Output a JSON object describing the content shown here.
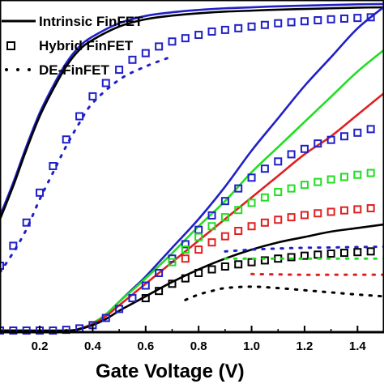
{
  "chart_data": {
    "type": "line",
    "xlabel": "Gate Voltage (V)",
    "ylabel": "",
    "title": "",
    "xlim": [
      0.05,
      1.5
    ],
    "ylim": [
      0,
      1
    ],
    "x_ticks": [
      "0.2",
      "0.4",
      "0.6",
      "0.8",
      "1.0",
      "1.2",
      "1.4"
    ],
    "x_tick_values": [
      0.2,
      0.4,
      0.6,
      0.8,
      1.0,
      1.2,
      1.4
    ],
    "legend": {
      "position": "top-left",
      "entries": [
        {
          "label": "Intrinsic FinFET",
          "marker": "solid-line"
        },
        {
          "label": "Hybrid FinFET",
          "marker": "open-square"
        },
        {
          "label": "DE-FinFET",
          "marker": "dotted-line"
        }
      ]
    },
    "colors": {
      "black": "#000000",
      "red": "#e02020",
      "green": "#22dd22",
      "blue": "#2020c8"
    },
    "series": [
      {
        "style": "solid",
        "color": "blue",
        "group": "log",
        "x": [
          0.05,
          0.1,
          0.15,
          0.2,
          0.25,
          0.3,
          0.35,
          0.4,
          0.5,
          0.6,
          0.7,
          0.8,
          0.9,
          1.0,
          1.1,
          1.2,
          1.3,
          1.4,
          1.5
        ],
        "y": [
          0.35,
          0.45,
          0.56,
          0.66,
          0.74,
          0.81,
          0.86,
          0.89,
          0.93,
          0.952,
          0.963,
          0.97,
          0.975,
          0.978,
          0.981,
          0.983,
          0.985,
          0.987,
          0.988
        ]
      },
      {
        "style": "solid",
        "color": "black",
        "group": "log",
        "x": [
          0.05,
          0.1,
          0.15,
          0.2,
          0.25,
          0.3,
          0.35,
          0.4,
          0.5,
          0.6,
          0.7,
          0.8,
          0.9,
          1.0,
          1.1,
          1.2,
          1.3,
          1.4,
          1.5
        ],
        "y": [
          0.34,
          0.44,
          0.55,
          0.65,
          0.73,
          0.8,
          0.85,
          0.88,
          0.92,
          0.942,
          0.953,
          0.96,
          0.965,
          0.968,
          0.971,
          0.973,
          0.975,
          0.977,
          0.978
        ]
      },
      {
        "style": "square",
        "color": "blue",
        "group": "log",
        "x": [
          0.05,
          0.1,
          0.15,
          0.2,
          0.25,
          0.3,
          0.35,
          0.4,
          0.45,
          0.5,
          0.55,
          0.6,
          0.65,
          0.7,
          0.75,
          0.8,
          0.85,
          0.9,
          0.95,
          1.0,
          1.05,
          1.1,
          1.15,
          1.2,
          1.25,
          1.3,
          1.35,
          1.4,
          1.45
        ],
        "y": [
          0.2,
          0.26,
          0.33,
          0.42,
          0.5,
          0.58,
          0.65,
          0.71,
          0.75,
          0.79,
          0.82,
          0.84,
          0.86,
          0.875,
          0.885,
          0.895,
          0.905,
          0.91,
          0.915,
          0.92,
          0.925,
          0.93,
          0.933,
          0.936,
          0.939,
          0.942,
          0.944,
          0.946,
          0.948
        ]
      },
      {
        "style": "dotted",
        "color": "blue",
        "group": "log",
        "x": [
          0.05,
          0.1,
          0.15,
          0.2,
          0.25,
          0.3,
          0.35,
          0.4,
          0.5,
          0.6,
          0.7
        ],
        "y": [
          0.18,
          0.24,
          0.31,
          0.4,
          0.48,
          0.56,
          0.63,
          0.69,
          0.76,
          0.8,
          0.83
        ]
      },
      {
        "style": "solid",
        "color": "blue",
        "group": "linear",
        "x": [
          0.05,
          0.3,
          0.35,
          0.4,
          0.45,
          0.5,
          0.55,
          0.6,
          0.7,
          0.8,
          0.9,
          1.0,
          1.1,
          1.2,
          1.3,
          1.4,
          1.5
        ],
        "y": [
          0.0,
          0.0,
          0.005,
          0.02,
          0.045,
          0.08,
          0.115,
          0.15,
          0.23,
          0.31,
          0.4,
          0.5,
          0.59,
          0.68,
          0.76,
          0.84,
          0.9
        ]
      },
      {
        "style": "solid",
        "color": "green",
        "group": "linear",
        "x": [
          0.05,
          0.3,
          0.35,
          0.4,
          0.45,
          0.5,
          0.55,
          0.6,
          0.7,
          0.8,
          0.9,
          1.0,
          1.1,
          1.2,
          1.3,
          1.4,
          1.5
        ],
        "y": [
          0.0,
          0.0,
          0.005,
          0.02,
          0.045,
          0.08,
          0.112,
          0.145,
          0.215,
          0.29,
          0.36,
          0.44,
          0.51,
          0.58,
          0.65,
          0.72,
          0.78
        ]
      },
      {
        "style": "solid",
        "color": "red",
        "group": "linear",
        "x": [
          0.05,
          0.3,
          0.35,
          0.4,
          0.45,
          0.5,
          0.55,
          0.6,
          0.7,
          0.8,
          0.9,
          1.0,
          1.1,
          1.2,
          1.3,
          1.4,
          1.5
        ],
        "y": [
          0.0,
          0.0,
          0.005,
          0.018,
          0.04,
          0.07,
          0.1,
          0.13,
          0.19,
          0.25,
          0.31,
          0.37,
          0.43,
          0.49,
          0.54,
          0.6,
          0.66
        ]
      },
      {
        "style": "solid",
        "color": "black",
        "group": "linear",
        "x": [
          0.05,
          0.3,
          0.35,
          0.4,
          0.45,
          0.5,
          0.55,
          0.6,
          0.7,
          0.8,
          0.9,
          1.0,
          1.1,
          1.2,
          1.3,
          1.4,
          1.5
        ],
        "y": [
          0.0,
          0.0,
          0.004,
          0.015,
          0.032,
          0.055,
          0.075,
          0.095,
          0.135,
          0.17,
          0.2,
          0.225,
          0.245,
          0.26,
          0.275,
          0.285,
          0.295
        ]
      },
      {
        "style": "square",
        "color": "blue",
        "group": "linear",
        "x": [
          0.05,
          0.1,
          0.15,
          0.2,
          0.25,
          0.3,
          0.35,
          0.4,
          0.45,
          0.5,
          0.55,
          0.6,
          0.65,
          0.7,
          0.75,
          0.8,
          0.85,
          0.9,
          0.95,
          1.0,
          1.05,
          1.1,
          1.15,
          1.2,
          1.25,
          1.3,
          1.35,
          1.4,
          1.45
        ],
        "y": [
          0.0,
          0.0,
          0.0,
          0.0,
          0.0,
          0.002,
          0.006,
          0.015,
          0.035,
          0.06,
          0.09,
          0.125,
          0.16,
          0.2,
          0.24,
          0.28,
          0.32,
          0.36,
          0.395,
          0.425,
          0.45,
          0.47,
          0.49,
          0.505,
          0.52,
          0.53,
          0.54,
          0.55,
          0.56
        ]
      },
      {
        "style": "square",
        "color": "green",
        "group": "linear",
        "x": [
          0.7,
          0.75,
          0.8,
          0.85,
          0.9,
          0.95,
          1.0,
          1.05,
          1.1,
          1.15,
          1.2,
          1.25,
          1.3,
          1.35,
          1.4,
          1.45
        ],
        "y": [
          0.19,
          0.225,
          0.26,
          0.29,
          0.315,
          0.335,
          0.355,
          0.37,
          0.385,
          0.395,
          0.405,
          0.413,
          0.42,
          0.427,
          0.433,
          0.438
        ]
      },
      {
        "style": "square",
        "color": "red",
        "group": "linear",
        "x": [
          0.75,
          0.8,
          0.85,
          0.9,
          0.95,
          1.0,
          1.05,
          1.1,
          1.15,
          1.2,
          1.25,
          1.3,
          1.35,
          1.4,
          1.45
        ],
        "y": [
          0.2,
          0.225,
          0.245,
          0.262,
          0.277,
          0.29,
          0.3,
          0.308,
          0.315,
          0.321,
          0.326,
          0.33,
          0.334,
          0.337,
          0.34
        ]
      },
      {
        "style": "square",
        "color": "black",
        "group": "linear",
        "x": [
          0.6,
          0.65,
          0.7,
          0.75,
          0.8,
          0.85,
          0.9,
          0.95,
          1.0,
          1.05,
          1.1,
          1.15,
          1.2,
          1.25,
          1.3,
          1.35,
          1.4,
          1.45
        ],
        "y": [
          0.09,
          0.11,
          0.13,
          0.145,
          0.16,
          0.17,
          0.178,
          0.184,
          0.19,
          0.195,
          0.2,
          0.204,
          0.208,
          0.211,
          0.214,
          0.216,
          0.218,
          0.22
        ]
      },
      {
        "style": "dotted",
        "color": "blue",
        "group": "linear",
        "x": [
          0.9,
          1.0,
          1.1,
          1.2,
          1.3,
          1.4,
          1.5
        ],
        "y": [
          0.22,
          0.225,
          0.228,
          0.23,
          0.231,
          0.232,
          0.233
        ]
      },
      {
        "style": "dotted",
        "color": "green",
        "group": "linear",
        "x": [
          0.9,
          1.0,
          1.1,
          1.2,
          1.3,
          1.4,
          1.5
        ],
        "y": [
          0.2,
          0.2,
          0.2,
          0.2,
          0.2,
          0.2,
          0.2
        ]
      },
      {
        "style": "dotted",
        "color": "red",
        "group": "linear",
        "x": [
          1.0,
          1.1,
          1.2,
          1.3,
          1.4,
          1.5
        ],
        "y": [
          0.157,
          0.156,
          0.155,
          0.155,
          0.155,
          0.155
        ]
      },
      {
        "style": "dotted",
        "color": "black",
        "group": "linear",
        "x": [
          0.75,
          0.8,
          0.85,
          0.9,
          1.0,
          1.1,
          1.2,
          1.3,
          1.4,
          1.5
        ],
        "y": [
          0.085,
          0.1,
          0.11,
          0.118,
          0.122,
          0.118,
          0.112,
          0.106,
          0.1,
          0.095
        ]
      }
    ]
  }
}
